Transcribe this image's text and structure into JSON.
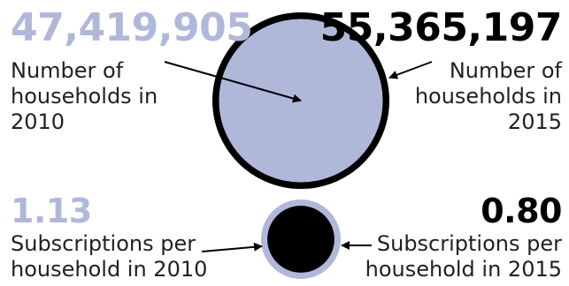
{
  "colors": {
    "y2010": "#b0b8da",
    "y2015": "#000000",
    "text": "#231f20"
  },
  "top": {
    "value_2010": "47,419,905",
    "label_2010": [
      "Number of",
      "households in",
      "2010"
    ],
    "value_2015": "55,365,197",
    "label_2015": [
      "Number of",
      "households in",
      "2015"
    ]
  },
  "bottom": {
    "value_2010": "1.13",
    "label_2010": [
      "Subscriptions per",
      "household in 2010"
    ],
    "value_2015": "0.80",
    "label_2015": [
      "Subscriptions per",
      "household in 2015"
    ]
  },
  "chart_data": [
    {
      "type": "bubble",
      "series": [
        {
          "name": "Number of households in 2010",
          "values": [
            47419905
          ]
        },
        {
          "name": "Number of households in 2015",
          "values": [
            55365197
          ]
        }
      ]
    },
    {
      "type": "bubble",
      "series": [
        {
          "name": "Subscriptions per household in 2010",
          "values": [
            1.13
          ]
        },
        {
          "name": "Subscriptions per household in 2015",
          "values": [
            0.8
          ]
        }
      ]
    }
  ]
}
